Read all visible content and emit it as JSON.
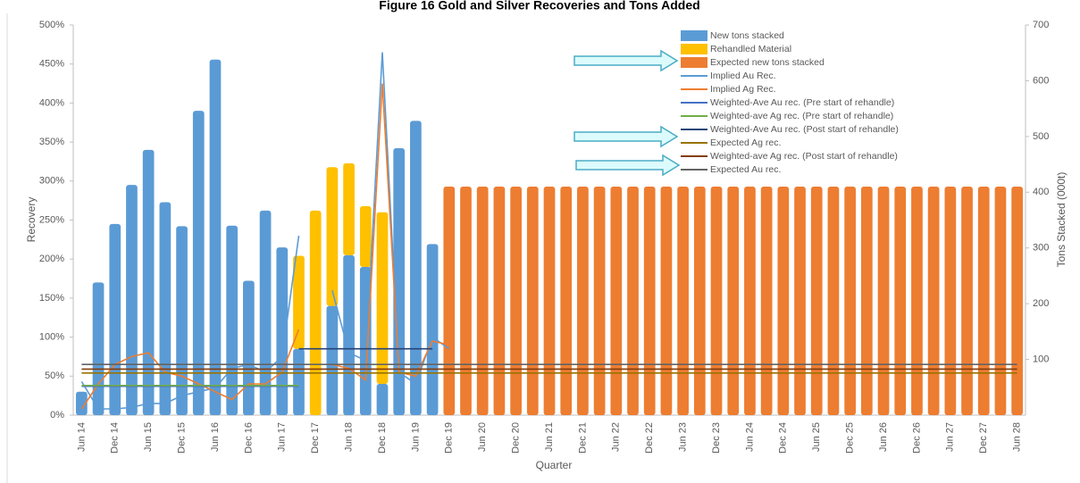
{
  "chart_data": {
    "type": "combo",
    "title": "Figure 16 Gold and Silver Recoveries and Tons Added",
    "xlabel": "Quarter",
    "ylabel": "Recovery",
    "y2label": "Tons Stacked (000t)",
    "categories": [
      "Jun 14",
      null,
      "Dec 14",
      null,
      "Jun 15",
      null,
      "Dec 15",
      null,
      "Jun 16",
      null,
      "Dec 16",
      null,
      "Jun 17",
      null,
      "Dec 17",
      null,
      "Jun 18",
      null,
      "Dec 18",
      null,
      "Jun 19",
      null,
      "Dec 19",
      null,
      "Jun 20",
      null,
      "Dec 20",
      null,
      "Jun 21",
      null,
      "Dec 21",
      null,
      "Jun 22",
      null,
      "Dec 22",
      null,
      "Jun 23",
      null,
      "Dec 23",
      null,
      "Jun 24",
      null,
      "Dec 24",
      null,
      "Jun 25",
      null,
      "Dec 25",
      null,
      "Jun 26",
      null,
      "Dec 26",
      null,
      "Jun 27",
      null,
      "Dec 27",
      null,
      "Jun 28"
    ],
    "ylim": [
      0,
      500
    ],
    "yticks": [
      {
        "value": 0,
        "label": "0%"
      },
      {
        "value": 50,
        "label": "50%"
      },
      {
        "value": 100,
        "label": "100%"
      },
      {
        "value": 150,
        "label": "150%"
      },
      {
        "value": 200,
        "label": "200%"
      },
      {
        "value": 250,
        "label": "250%"
      },
      {
        "value": 300,
        "label": "300%"
      },
      {
        "value": 350,
        "label": "350%"
      },
      {
        "value": 400,
        "label": "400%"
      },
      {
        "value": 450,
        "label": "450%"
      },
      {
        "value": 500,
        "label": "500%"
      }
    ],
    "y2lim": [
      0,
      700
    ],
    "y2ticks": [
      100,
      200,
      300,
      400,
      500,
      600,
      700
    ],
    "series": [
      {
        "name": "New tons stacked",
        "type": "bar",
        "axis": "y2",
        "color": "#5b9bd5",
        "values": [
          42,
          238,
          343,
          413,
          476,
          382,
          339,
          546,
          638,
          340,
          241,
          367,
          301,
          119,
          0,
          196,
          287,
          266,
          56,
          479,
          528,
          307,
          null,
          null,
          null,
          null,
          null,
          null,
          null,
          null,
          null,
          null,
          null,
          null,
          null,
          null,
          null,
          null,
          null,
          null,
          null,
          null,
          null,
          null,
          null,
          null,
          null,
          null,
          null,
          null,
          null,
          null,
          null,
          null,
          null,
          null,
          null
        ]
      },
      {
        "name": "Rehandled Material",
        "type": "bar",
        "axis": "y2",
        "color": "#ffc000",
        "values": [
          null,
          null,
          null,
          null,
          null,
          null,
          null,
          null,
          null,
          null,
          null,
          null,
          null,
          167,
          367,
          249,
          165,
          109,
          308,
          null,
          null,
          null,
          null,
          null,
          null,
          null,
          null,
          null,
          null,
          null,
          null,
          null,
          null,
          null,
          null,
          null,
          null,
          null,
          null,
          null,
          null,
          null,
          null,
          null,
          null,
          null,
          null,
          null,
          null,
          null,
          null,
          null,
          null,
          null,
          null,
          null,
          null
        ]
      },
      {
        "name": "Expected new tons stacked",
        "type": "bar",
        "axis": "y2",
        "color": "#ed7d31",
        "values": [
          null,
          null,
          null,
          null,
          null,
          null,
          null,
          null,
          null,
          null,
          null,
          null,
          null,
          null,
          null,
          null,
          null,
          null,
          null,
          null,
          null,
          null,
          410,
          410,
          410,
          410,
          410,
          410,
          410,
          410,
          410,
          410,
          410,
          410,
          410,
          410,
          410,
          410,
          410,
          410,
          410,
          410,
          410,
          410,
          410,
          410,
          410,
          410,
          410,
          410,
          410,
          410,
          410,
          410,
          410,
          410,
          410
        ]
      },
      {
        "name": "Implied Au Rec.",
        "type": "line",
        "color": "#5b9bd5",
        "values": [
          43,
          8,
          8,
          10,
          15,
          15,
          25,
          30,
          35,
          60,
          65,
          55,
          75,
          230,
          null,
          160,
          80,
          70,
          465,
          55,
          40,
          100,
          85,
          null,
          null,
          null,
          null,
          null,
          null,
          null,
          null,
          null,
          null,
          null,
          null,
          null,
          null,
          null,
          null,
          null,
          null,
          null,
          null,
          null,
          null,
          null,
          null,
          null,
          null,
          null,
          null,
          null,
          null,
          null,
          null,
          null,
          null
        ]
      },
      {
        "name": "Implied Ag Rec.",
        "type": "line",
        "color": "#ed7d31",
        "values": [
          8,
          40,
          65,
          75,
          80,
          55,
          50,
          40,
          30,
          20,
          40,
          40,
          55,
          110,
          null,
          65,
          60,
          45,
          425,
          55,
          50,
          95,
          90,
          null,
          null,
          null,
          null,
          null,
          null,
          null,
          null,
          null,
          null,
          null,
          null,
          null,
          null,
          null,
          null,
          null,
          null,
          null,
          null,
          null,
          null,
          null,
          null,
          null,
          null,
          null,
          null,
          null,
          null,
          null,
          null,
          null,
          null
        ]
      },
      {
        "name": "Weighted-Ave Au rec. (Pre start of rehandle)",
        "type": "line",
        "color": "#4472c4",
        "values": [
          37,
          37,
          37,
          37,
          37,
          37,
          37,
          37,
          37,
          37,
          37,
          37,
          37,
          37,
          null,
          null,
          null,
          null,
          null,
          null,
          null,
          null,
          null,
          null,
          null,
          null,
          null,
          null,
          null,
          null,
          null,
          null,
          null,
          null,
          null,
          null,
          null,
          null,
          null,
          null,
          null,
          null,
          null,
          null,
          null,
          null,
          null,
          null,
          null,
          null,
          null,
          null,
          null,
          null,
          null,
          null,
          null
        ]
      },
      {
        "name": "Weighted-ave Ag rec. (Pre start of rehandle)",
        "type": "line",
        "color": "#70ad47",
        "values": [
          38,
          38,
          38,
          38,
          38,
          38,
          38,
          38,
          38,
          38,
          38,
          38,
          38,
          38,
          null,
          null,
          null,
          null,
          null,
          null,
          null,
          null,
          null,
          null,
          null,
          null,
          null,
          null,
          null,
          null,
          null,
          null,
          null,
          null,
          null,
          null,
          null,
          null,
          null,
          null,
          null,
          null,
          null,
          null,
          null,
          null,
          null,
          null,
          null,
          null,
          null,
          null,
          null,
          null,
          null,
          null,
          null
        ]
      },
      {
        "name": "Weighted-Ave Au rec. (Post start of rehandle)",
        "type": "line",
        "color": "#264478",
        "values": [
          null,
          null,
          null,
          null,
          null,
          null,
          null,
          null,
          null,
          null,
          null,
          null,
          null,
          85,
          85,
          85,
          85,
          85,
          85,
          85,
          85,
          85,
          null,
          null,
          null,
          null,
          null,
          null,
          null,
          null,
          null,
          null,
          null,
          null,
          null,
          null,
          null,
          null,
          null,
          null,
          null,
          null,
          null,
          null,
          null,
          null,
          null,
          null,
          null,
          null,
          null,
          null,
          null,
          null,
          null,
          null,
          null
        ]
      },
      {
        "name": "Expected Ag rec.",
        "type": "line",
        "color": "#997300",
        "values": [
          54,
          54,
          54,
          54,
          54,
          54,
          54,
          54,
          54,
          54,
          54,
          54,
          54,
          54,
          54,
          54,
          54,
          54,
          54,
          54,
          54,
          54,
          54,
          54,
          54,
          54,
          54,
          54,
          54,
          54,
          54,
          54,
          54,
          54,
          54,
          54,
          54,
          54,
          54,
          54,
          54,
          54,
          54,
          54,
          54,
          54,
          54,
          54,
          54,
          54,
          54,
          54,
          54,
          54,
          54,
          54,
          54
        ]
      },
      {
        "name": "Weighted-ave Ag rec. (Post start of rehandle)",
        "type": "line",
        "color": "#843c0c",
        "values": [
          59,
          59,
          59,
          59,
          59,
          59,
          59,
          59,
          59,
          59,
          59,
          59,
          59,
          59,
          59,
          59,
          59,
          59,
          59,
          59,
          59,
          59,
          59,
          59,
          59,
          59,
          59,
          59,
          59,
          59,
          59,
          59,
          59,
          59,
          59,
          59,
          59,
          59,
          59,
          59,
          59,
          59,
          59,
          59,
          59,
          59,
          59,
          59,
          59,
          59,
          59,
          59,
          59,
          59,
          59,
          59,
          59
        ]
      },
      {
        "name": "Expected Au rec.",
        "type": "line",
        "color": "#636363",
        "values": [
          65,
          65,
          65,
          65,
          65,
          65,
          65,
          65,
          65,
          65,
          65,
          65,
          65,
          65,
          65,
          65,
          65,
          65,
          65,
          65,
          65,
          65,
          65,
          65,
          65,
          65,
          65,
          65,
          65,
          65,
          65,
          65,
          65,
          65,
          65,
          65,
          65,
          65,
          65,
          65,
          65,
          65,
          65,
          65,
          65,
          65,
          65,
          65,
          65,
          65,
          65,
          65,
          65,
          65,
          65,
          65,
          65
        ]
      }
    ],
    "legend": "upper right"
  }
}
